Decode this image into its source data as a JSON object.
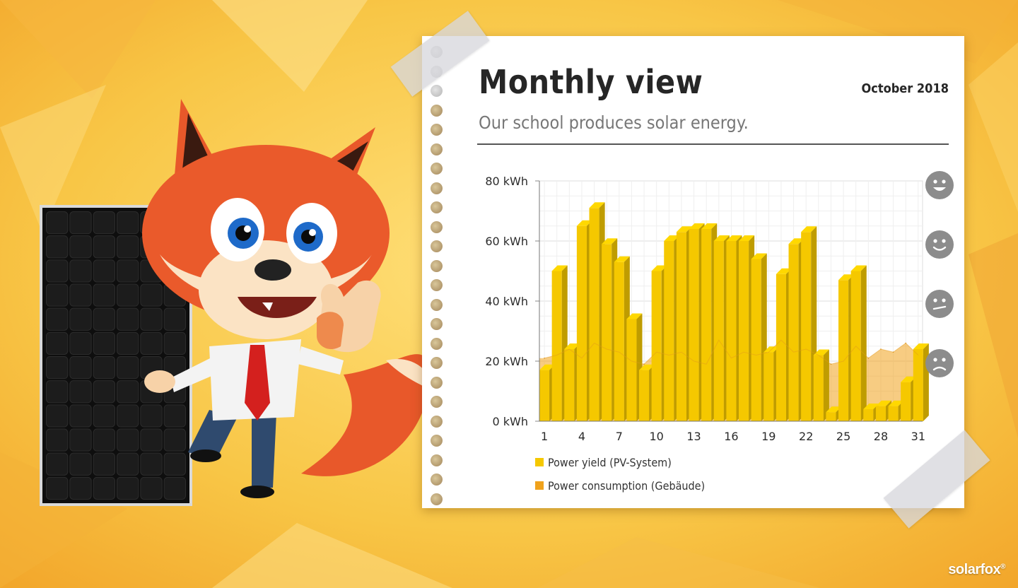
{
  "header": {
    "title": "Monthly view",
    "date": "October 2018",
    "subtitle": "Our school produces solar energy."
  },
  "brand": {
    "logo_text": "solarfox",
    "logo_mark": "®"
  },
  "illustration": {
    "panel": "solar-panel",
    "mascot": "fox-mascot-thumbs-up"
  },
  "faces": [
    {
      "icon": "very-happy-face-icon",
      "level": "80 kWh"
    },
    {
      "icon": "happy-face-icon",
      "level": "60 kWh"
    },
    {
      "icon": "neutral-face-icon",
      "level": "40 kWh"
    },
    {
      "icon": "sad-face-icon",
      "level": "20 kWh"
    }
  ],
  "colors": {
    "yield": "#f5c800",
    "consumption": "#f0a21c",
    "background": "#f5c43e",
    "face": "#8c8c8c"
  },
  "chart_data": {
    "type": "bar",
    "x": [
      1,
      2,
      3,
      4,
      5,
      6,
      7,
      8,
      9,
      10,
      11,
      12,
      13,
      14,
      15,
      16,
      17,
      18,
      19,
      20,
      21,
      22,
      23,
      24,
      25,
      26,
      27,
      28,
      29,
      30,
      31
    ],
    "x_ticks": [
      "1",
      "4",
      "7",
      "10",
      "13",
      "16",
      "19",
      "22",
      "25",
      "28",
      "31"
    ],
    "y_ticks": [
      "0 kWh",
      "20 kWh",
      "40 kWh",
      "60 kWh",
      "80 kWh"
    ],
    "ylim": [
      0,
      80
    ],
    "grid": true,
    "legend_position": "bottom-left",
    "series": [
      {
        "name": "Power yield (PV-System)",
        "type": "bar",
        "color": "#f5c800",
        "values": [
          17,
          50,
          24,
          65,
          71,
          59,
          53,
          34,
          17,
          50,
          60,
          63,
          64,
          64,
          60,
          60,
          60,
          54,
          23,
          49,
          59,
          63,
          22,
          3,
          47,
          50,
          4,
          5,
          5,
          13,
          24
        ]
      },
      {
        "name": "Power consumption (Gebäude)",
        "type": "area",
        "color": "#f0a21c",
        "values": [
          21,
          22,
          24,
          21,
          26,
          24,
          23,
          20,
          19,
          23,
          22,
          23,
          20,
          19,
          27,
          21,
          23,
          22,
          23,
          27,
          23,
          24,
          22,
          19,
          20,
          25,
          21,
          24,
          23,
          26,
          22
        ]
      }
    ]
  }
}
